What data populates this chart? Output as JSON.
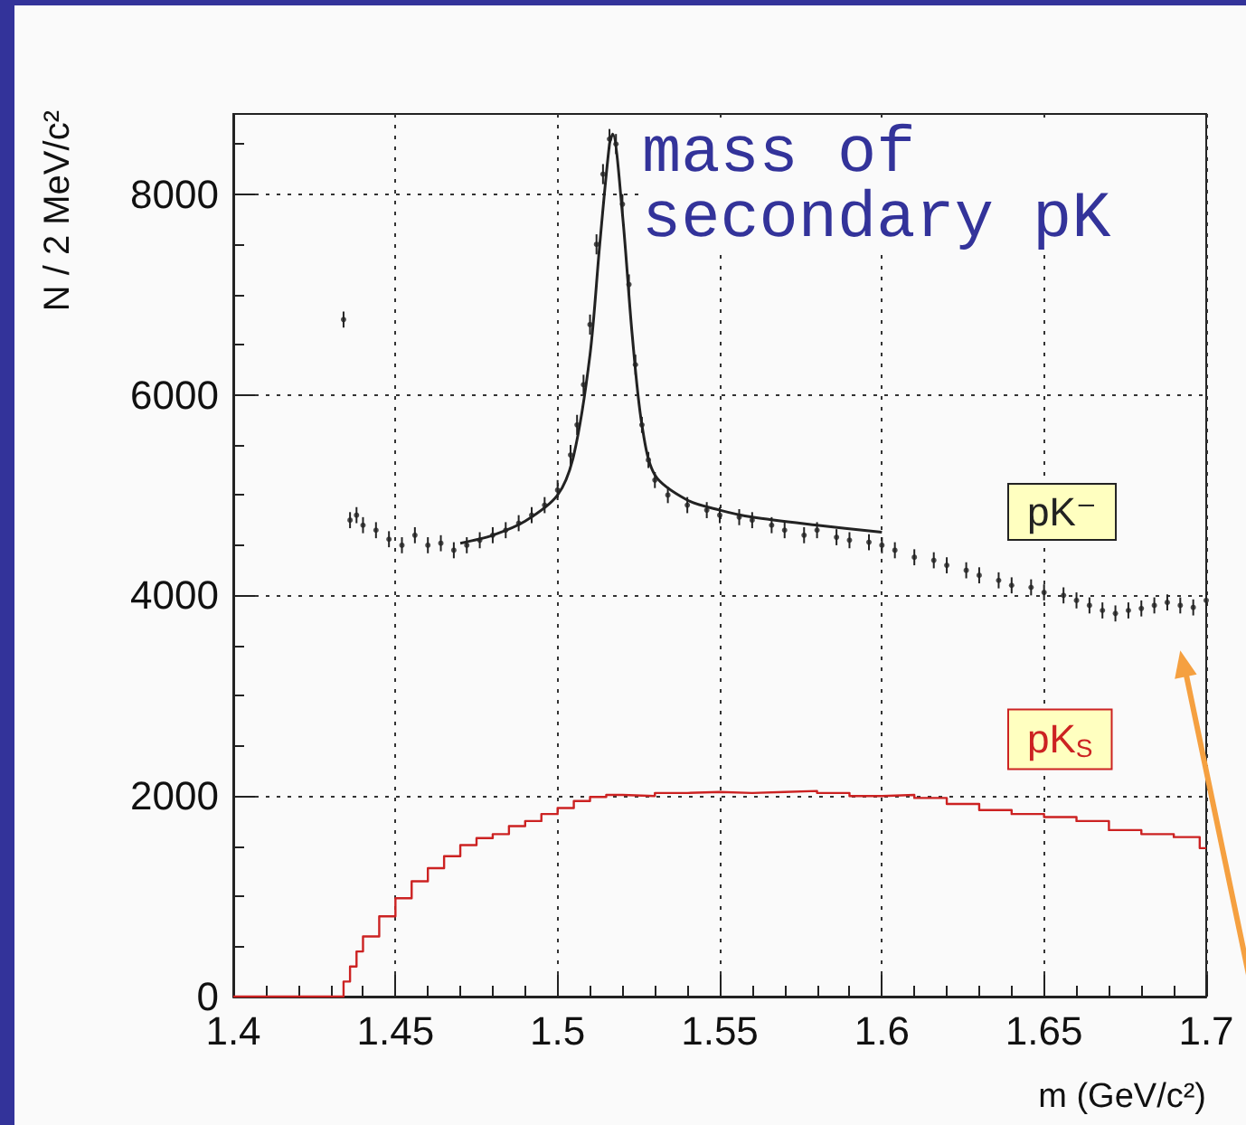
{
  "chart_data": {
    "type": "scatter",
    "xlabel": "m (GeV/c²)",
    "ylabel": "N / 2 MeV/c²",
    "annotations": [
      "mass of secondary pK"
    ],
    "xlim": [
      1.4,
      1.7
    ],
    "xticks": [
      1.4,
      1.45,
      1.5,
      1.55,
      1.6,
      1.65,
      1.7
    ],
    "ylim": [
      0,
      8800
    ],
    "yticks": [
      0,
      2000,
      4000,
      6000,
      8000
    ],
    "grid": true,
    "marker": "circle",
    "legend": "right",
    "series": [
      {
        "name": "pK⁻",
        "color": "#222222",
        "x": [
          1.434,
          1.436,
          1.438,
          1.44,
          1.444,
          1.448,
          1.452,
          1.456,
          1.46,
          1.464,
          1.468,
          1.472,
          1.476,
          1.48,
          1.484,
          1.488,
          1.492,
          1.496,
          1.5,
          1.504,
          1.506,
          1.508,
          1.51,
          1.512,
          1.514,
          1.516,
          1.518,
          1.52,
          1.522,
          1.524,
          1.526,
          1.528,
          1.53,
          1.534,
          1.54,
          1.546,
          1.55,
          1.556,
          1.56,
          1.566,
          1.57,
          1.576,
          1.58,
          1.586,
          1.59,
          1.596,
          1.6,
          1.604,
          1.61,
          1.616,
          1.62,
          1.626,
          1.63,
          1.636,
          1.64,
          1.646,
          1.65,
          1.656,
          1.66,
          1.664,
          1.668,
          1.672,
          1.676,
          1.68,
          1.684,
          1.688,
          1.692,
          1.696,
          1.7
        ],
        "values": [
          6750,
          4750,
          4800,
          4700,
          4650,
          4560,
          4500,
          4600,
          4500,
          4520,
          4450,
          4500,
          4550,
          4600,
          4650,
          4720,
          4800,
          4900,
          5050,
          5400,
          5700,
          6100,
          6700,
          7500,
          8200,
          8550,
          8500,
          7900,
          7100,
          6300,
          5700,
          5350,
          5150,
          5000,
          4900,
          4850,
          4800,
          4780,
          4750,
          4700,
          4650,
          4600,
          4650,
          4580,
          4550,
          4530,
          4500,
          4450,
          4380,
          4350,
          4300,
          4250,
          4200,
          4150,
          4100,
          4080,
          4030,
          4000,
          3950,
          3900,
          3850,
          3820,
          3850,
          3870,
          3900,
          3930,
          3900,
          3880,
          3950
        ],
        "errors": [
          80,
          80,
          80,
          80,
          80,
          80,
          80,
          80,
          80,
          80,
          80,
          80,
          80,
          80,
          80,
          80,
          80,
          80,
          100,
          100,
          100,
          100,
          100,
          100,
          100,
          100,
          100,
          100,
          100,
          100,
          80,
          80,
          80,
          80,
          80,
          80,
          80,
          80,
          80,
          80,
          80,
          80,
          80,
          80,
          80,
          80,
          80,
          80,
          80,
          80,
          80,
          80,
          80,
          80,
          80,
          80,
          80,
          80,
          80,
          80,
          80,
          80,
          80,
          80,
          80,
          80,
          80,
          80,
          80
        ]
      },
      {
        "type": "line",
        "color": "#222222",
        "marker": "none",
        "x": [
          1.47,
          1.48,
          1.49,
          1.5,
          1.505,
          1.51,
          1.513,
          1.516,
          1.517,
          1.52,
          1.523,
          1.526,
          1.53,
          1.54,
          1.55,
          1.56,
          1.58,
          1.6
        ],
        "values": [
          4520,
          4600,
          4740,
          5000,
          5400,
          6400,
          7500,
          8500,
          8600,
          7800,
          6600,
          5700,
          5200,
          4950,
          4850,
          4780,
          4700,
          4630
        ]
      },
      {
        "name": "pK$_{S}$",
        "type": "step",
        "color": "#cc2222",
        "marker": "none",
        "x": [
          1.4,
          1.432,
          1.434,
          1.436,
          1.438,
          1.44,
          1.445,
          1.45,
          1.455,
          1.46,
          1.465,
          1.47,
          1.475,
          1.48,
          1.485,
          1.49,
          1.495,
          1.5,
          1.505,
          1.51,
          1.515,
          1.52,
          1.53,
          1.54,
          1.55,
          1.56,
          1.57,
          1.58,
          1.59,
          1.6,
          1.61,
          1.62,
          1.63,
          1.64,
          1.65,
          1.66,
          1.67,
          1.68,
          1.69,
          1.698,
          1.7
        ],
        "values": [
          0,
          0,
          150,
          300,
          450,
          600,
          800,
          980,
          1150,
          1280,
          1400,
          1510,
          1580,
          1620,
          1700,
          1750,
          1820,
          1880,
          1950,
          1990,
          2010,
          2000,
          2030,
          2040,
          2030,
          2040,
          2050,
          2030,
          2000,
          2010,
          1980,
          1920,
          1860,
          1820,
          1790,
          1750,
          1660,
          1620,
          1590,
          1480,
          1480
        ]
      }
    ]
  }
}
